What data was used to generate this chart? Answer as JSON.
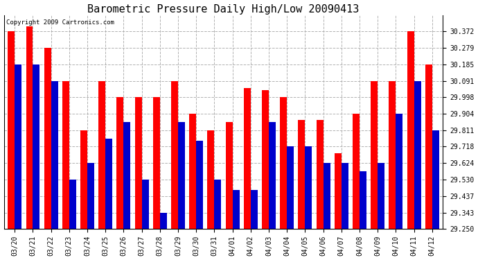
{
  "title": "Barometric Pressure Daily High/Low 20090413",
  "copyright_text": "Copyright 2009 Cartronics.com",
  "categories": [
    "03/20",
    "03/21",
    "03/22",
    "03/23",
    "03/24",
    "03/25",
    "03/26",
    "03/27",
    "03/28",
    "03/29",
    "03/30",
    "03/31",
    "04/01",
    "04/02",
    "04/03",
    "04/04",
    "04/05",
    "04/06",
    "04/07",
    "04/08",
    "04/09",
    "04/10",
    "04/11",
    "04/12"
  ],
  "highs": [
    30.372,
    30.4,
    30.279,
    30.091,
    29.811,
    30.091,
    29.998,
    29.998,
    29.998,
    30.091,
    29.904,
    29.811,
    29.857,
    30.05,
    30.04,
    29.998,
    29.87,
    29.87,
    29.68,
    29.904,
    30.091,
    30.091,
    30.372,
    30.185
  ],
  "lows": [
    30.185,
    30.185,
    30.091,
    29.53,
    29.624,
    29.765,
    29.857,
    29.53,
    29.343,
    29.857,
    29.75,
    29.53,
    29.47,
    29.47,
    29.857,
    29.718,
    29.718,
    29.624,
    29.624,
    29.577,
    29.624,
    29.904,
    30.091,
    29.811
  ],
  "ylim_min": 29.25,
  "ylim_max": 30.465,
  "yticks": [
    29.25,
    29.343,
    29.437,
    29.53,
    29.624,
    29.718,
    29.811,
    29.904,
    29.998,
    30.091,
    30.185,
    30.279,
    30.372
  ],
  "bar_width": 0.38,
  "high_color": "#ff0000",
  "low_color": "#0000cc",
  "bg_color": "#ffffff",
  "grid_color": "#aaaaaa",
  "title_fontsize": 11,
  "tick_fontsize": 7,
  "copyright_fontsize": 6.5
}
